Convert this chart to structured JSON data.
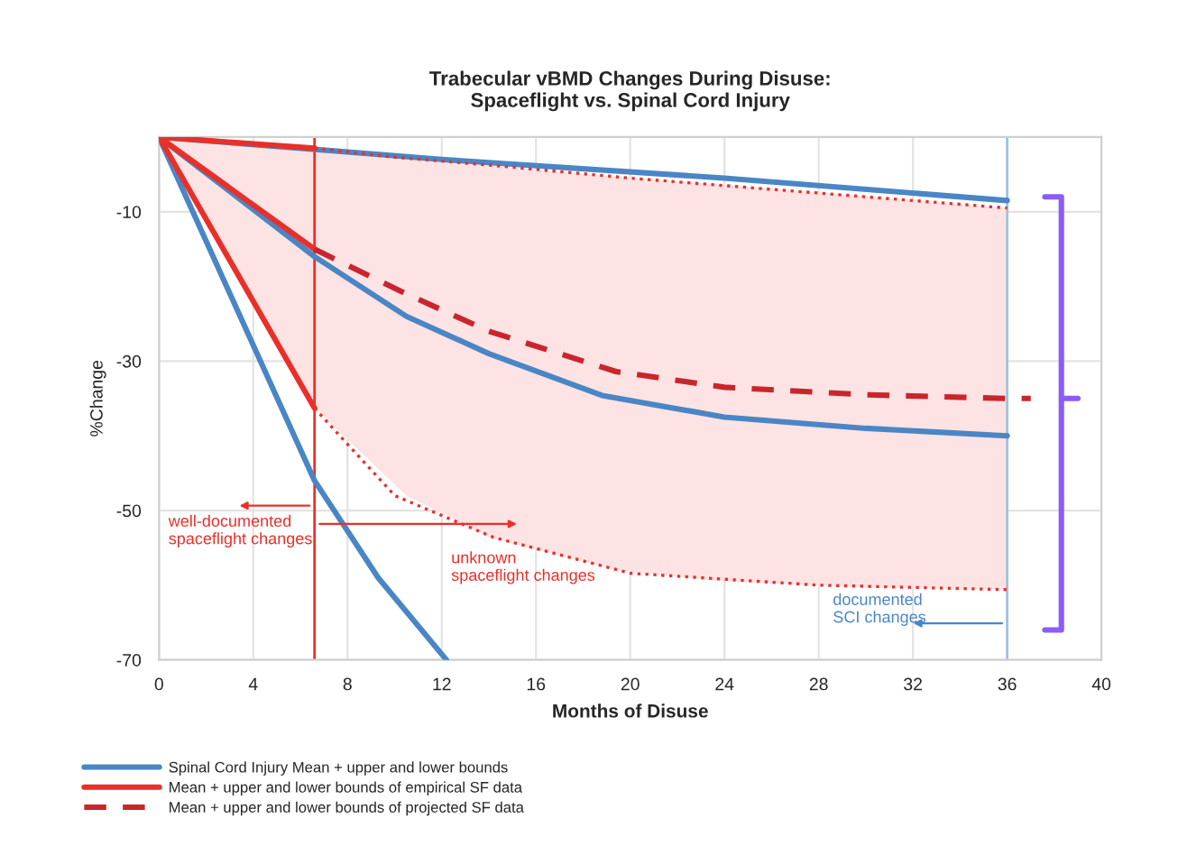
{
  "chart_data": {
    "type": "line",
    "title": "Trabecular vBMD Changes During Disuse:\nSpaceflight vs. Spinal Cord Injury",
    "xlabel": "Months of Disuse",
    "ylabel": "%Change",
    "xlim": [
      0,
      40
    ],
    "xticks": [
      0,
      4,
      8,
      12,
      16,
      20,
      24,
      28,
      32,
      36,
      40
    ],
    "ylim": [
      -70,
      0
    ],
    "yticks": [
      -10,
      -30,
      -50,
      -70
    ],
    "grid": true,
    "legend": "bottom",
    "series": [
      {
        "name": "Spinal Cord Injury Mean + upper and lower bounds",
        "color": "#4a86c5",
        "x": [
          0,
          6.6,
          10.5,
          14,
          18.8,
          24,
          30,
          36
        ],
        "values": [
          0,
          -16,
          -24,
          -29,
          -34.6,
          -37.5,
          -39,
          -40
        ]
      },
      {
        "color": "#4a86c5",
        "x": [
          0,
          12,
          24,
          36
        ],
        "values": [
          0,
          -3,
          -5.5,
          -8.5
        ]
      },
      {
        "color": "#4a86c5",
        "x": [
          0,
          6.6,
          9.3,
          12.2
        ],
        "values": [
          0,
          -46,
          -59,
          -70
        ]
      },
      {
        "name": "Mean + upper and lower bounds of empirical SF data",
        "color": "#e8302a",
        "x": [
          0,
          6.6
        ],
        "values": [
          0,
          -15
        ]
      },
      {
        "color": "#e8302a",
        "x": [
          0,
          6.6
        ],
        "values": [
          0,
          -1.5
        ]
      },
      {
        "color": "#e8302a",
        "x": [
          0,
          6.6
        ],
        "values": [
          0,
          -36.3
        ]
      },
      {
        "name": "Mean + upper and lower bounds of projected SF data",
        "color": "#c8262c",
        "line_style": "dashed",
        "x": [
          0,
          6.6,
          10.5,
          14,
          19.4,
          24,
          30,
          36,
          37
        ],
        "values": [
          null,
          -15,
          -21,
          -26,
          -31.4,
          -33.5,
          -34.5,
          -35,
          -35
        ],
        "lower": [
          0,
          -36.3,
          -48,
          -53.6,
          -58,
          -59.5,
          -60.3,
          -60.6,
          null
        ],
        "upper": [
          0,
          -1.5,
          -2.8,
          -3.8,
          -5.3,
          -6.4,
          -7.9,
          -9.5,
          null
        ]
      },
      {
        "color": "#e8302a",
        "line_style": "dotted",
        "x": [
          6.6,
          10,
          14.2,
          20,
          28,
          36
        ],
        "values": [
          -1.5,
          -2.7,
          -3.8,
          -5.5,
          -7.5,
          -9.5
        ]
      },
      {
        "color": "#e8302a",
        "line_style": "dotted",
        "x": [
          6.6,
          10,
          14.2,
          20,
          28,
          36
        ],
        "values": [
          -36.3,
          -48,
          -53.6,
          -58.4,
          -60,
          -60.6
        ]
      },
      {
        "color": "#8b5cf6",
        "x": [
          37.6,
          38.3,
          38.3,
          39,
          38.3,
          38.3,
          37.6
        ],
        "values": [
          -8,
          -8,
          -35,
          -35,
          -35,
          -66,
          -66
        ]
      }
    ],
    "ref_lines": [
      {
        "axis": "x",
        "value": 6.6,
        "color": "#e8302a"
      },
      {
        "axis": "x",
        "value": 36,
        "color": "#9cc3e6"
      }
    ],
    "annotations": [
      "well-documented\nspaceflight changes",
      "unknown\nspaceflight changes",
      "documented\nSCI changes"
    ]
  }
}
